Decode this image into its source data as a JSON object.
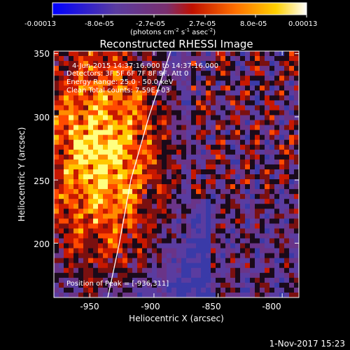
{
  "colorbar": {
    "tick_labels": [
      "-0.00013",
      "-8.0e-05",
      "-2.7e-05",
      "2.7e-05",
      "8.0e-05",
      "0.00013"
    ],
    "units_parts": [
      "(photons cm",
      "-2",
      " s",
      "-1",
      " asec",
      "-2",
      ")"
    ],
    "colors": [
      "#0000ff",
      "#5a3ca0",
      "#7a2f6e",
      "#c01000",
      "#ff7000",
      "#ffd000",
      "#ffffff"
    ]
  },
  "image": {
    "title": "Reconstructed RHESSI Image",
    "info_lines": [
      "4-Jun-2015 14:37:16.000 to 14:37:16.000",
      "Detectors: 3F 5F 6F 7F 8F 9F, Att 0",
      "Energy Range: 25.0 - 50.0 keV",
      "Clean    Total counts: 7.59E+03"
    ],
    "peak_label": "Position of Peak = [-936,311]",
    "x_axis": {
      "label": "Heliocentric X (arcsec)",
      "ticks": [
        "-950",
        "-900",
        "-850",
        "-800"
      ],
      "tick_values": [
        -950,
        -900,
        -850,
        -800
      ],
      "range": [
        -978,
        -787
      ]
    },
    "y_axis": {
      "label": "Heliocentric Y (arcsec)",
      "ticks": [
        "200",
        "250",
        "300",
        "350"
      ],
      "tick_values": [
        200,
        250,
        300,
        350
      ],
      "range": [
        157,
        352
      ]
    },
    "limb_points": [
      [
        -936,
        157
      ],
      [
        -927,
        200
      ],
      [
        -918,
        250
      ],
      [
        -904,
        300
      ],
      [
        -887,
        352
      ]
    ]
  },
  "footer": {
    "date": "1-Nov-2017 15:23"
  }
}
